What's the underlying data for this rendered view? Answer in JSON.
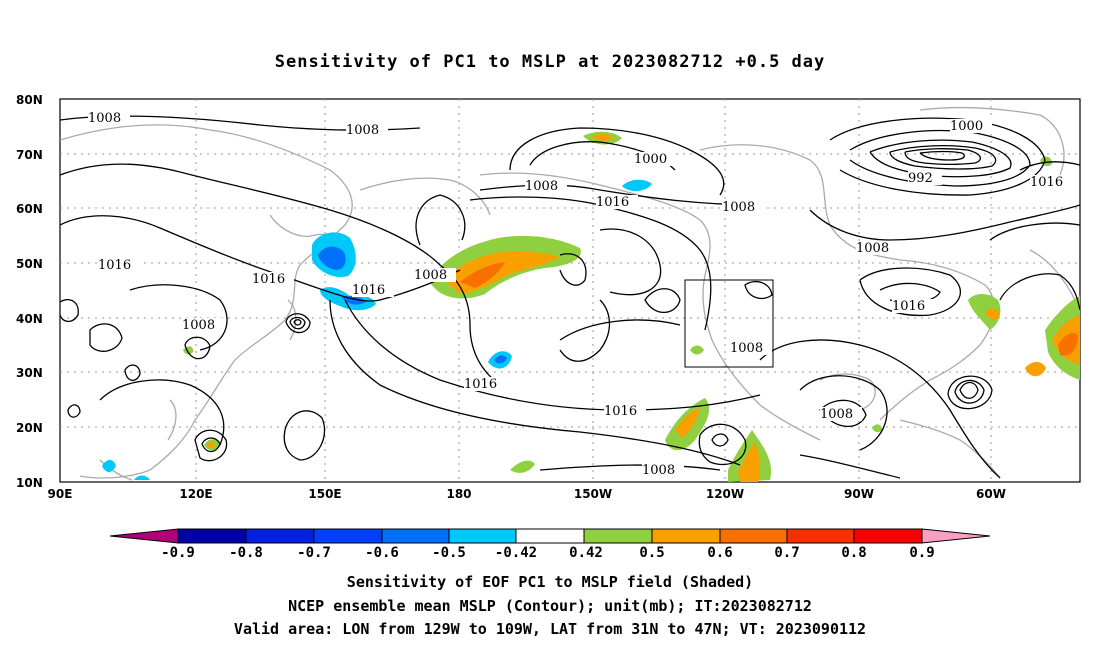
{
  "title": "Sensitivity of PC1 to MSLP at 2023082712 +0.5 day",
  "lat_labels": [
    "80N",
    "70N",
    "60N",
    "50N",
    "40N",
    "30N",
    "20N",
    "10N"
  ],
  "lon_labels": [
    "90E",
    "120E",
    "150E",
    "180",
    "150W",
    "120W",
    "90W",
    "60W"
  ],
  "colorbar": {
    "ticks": [
      "-0.9",
      "-0.8",
      "-0.7",
      "-0.6",
      "-0.5",
      "-0.42",
      "0.42",
      "0.5",
      "0.6",
      "0.7",
      "0.8",
      "0.9"
    ],
    "colors": [
      "#b0007a",
      "#0000a8",
      "#0020e0",
      "#0040f8",
      "#0070f8",
      "#00c8f8",
      "#ffffff",
      "#90d040",
      "#f8a000",
      "#f87000",
      "#f83000",
      "#f80000",
      "#f8a0c0"
    ]
  },
  "contour_labels": {
    "c1": "1008",
    "c2": "1008",
    "c3": "1000",
    "c4": "1000",
    "c5": "992",
    "c6": "1016",
    "c7": "1008",
    "c8": "1016",
    "c9": "1008",
    "c10": "1008",
    "c11": "1016",
    "c12": "1016",
    "c13": "1016",
    "c14": "1008",
    "c15": "1016",
    "c16": "1016",
    "c17": "1008",
    "c18": "1016",
    "c19": "1008",
    "c20": "1008",
    "c21": "1008"
  },
  "captions": {
    "line1": "Sensitivity of EOF PC1 to MSLP field (Shaded)",
    "line2": "NCEP ensemble mean MSLP (Contour); unit(mb); IT:2023082712",
    "line3": "Valid area: LON from 129W to 109W, LAT from 31N to 47N; VT: 2023090112"
  }
}
